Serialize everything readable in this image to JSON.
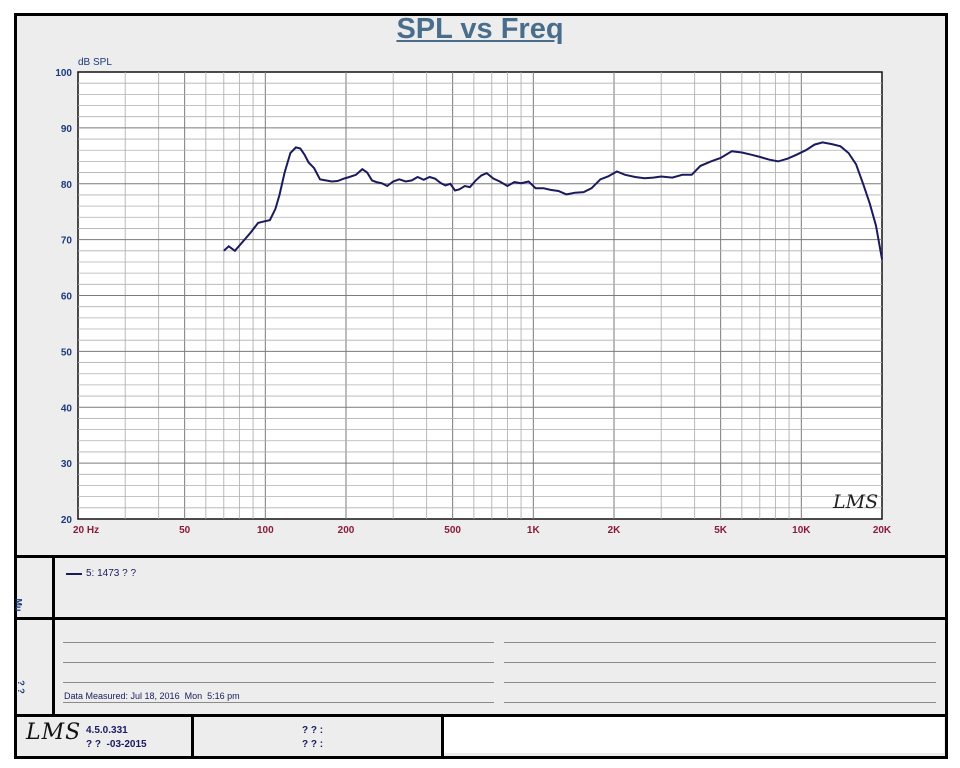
{
  "chart_data": {
    "type": "line",
    "title": "SPL vs Freq",
    "ylabel": "dB SPL",
    "xlabel": "",
    "x_scale": "log",
    "xlim": [
      20,
      20000
    ],
    "ylim": [
      20,
      100
    ],
    "y_ticks": [
      20,
      30,
      40,
      50,
      60,
      70,
      80,
      90,
      100
    ],
    "x_tick_values": [
      20,
      50,
      100,
      200,
      500,
      1000,
      2000,
      5000,
      10000,
      20000
    ],
    "x_tick_labels": [
      "20  Hz",
      "50",
      "100",
      "200",
      "500",
      "1K",
      "2K",
      "5K",
      "10K",
      "20K"
    ],
    "grid": true,
    "watermark": "LMS",
    "series": [
      {
        "name": "5: 1473 ? ?",
        "color": "#1a1a5e",
        "x": [
          70,
          73,
          77,
          82,
          88,
          94,
          98,
          104,
          109,
          113,
          118,
          124,
          130,
          135,
          140,
          145,
          152,
          160,
          168,
          177,
          186,
          196,
          206,
          218,
          230,
          240,
          250,
          260,
          272,
          285,
          300,
          316,
          334,
          352,
          370,
          390,
          410,
          430,
          452,
          470,
          490,
          510,
          530,
          555,
          580,
          610,
          640,
          670,
          710,
          750,
          800,
          850,
          900,
          960,
          1020,
          1090,
          1160,
          1240,
          1330,
          1430,
          1540,
          1650,
          1780,
          1900,
          2050,
          2200,
          2400,
          2600,
          2800,
          3000,
          3300,
          3600,
          3900,
          4200,
          4600,
          5000,
          5500,
          6000,
          6500,
          7000,
          7600,
          8200,
          8900,
          9600,
          10400,
          11200,
          12000,
          13000,
          14000,
          15000,
          16000,
          17000,
          18000,
          19000,
          20000
        ],
        "values": [
          68.0,
          68.8,
          68.0,
          69.5,
          71.2,
          73.0,
          73.2,
          73.5,
          75.5,
          78.0,
          82.0,
          85.5,
          86.5,
          86.3,
          85.2,
          83.8,
          82.8,
          80.8,
          80.6,
          80.4,
          80.5,
          80.9,
          81.2,
          81.6,
          82.6,
          82.0,
          80.6,
          80.3,
          80.1,
          79.6,
          80.4,
          80.8,
          80.4,
          80.6,
          81.2,
          80.7,
          81.2,
          80.9,
          80.1,
          79.7,
          80.0,
          78.8,
          79.0,
          79.6,
          79.4,
          80.6,
          81.5,
          81.9,
          80.9,
          80.4,
          79.6,
          80.3,
          80.1,
          80.4,
          79.2,
          79.2,
          78.9,
          78.7,
          78.1,
          78.4,
          78.5,
          79.2,
          80.8,
          81.3,
          82.2,
          81.6,
          81.2,
          81.0,
          81.1,
          81.3,
          81.1,
          81.6,
          81.6,
          83.2,
          84.0,
          84.6,
          85.8,
          85.6,
          85.2,
          84.8,
          84.3,
          84.0,
          84.5,
          85.2,
          86.0,
          87.0,
          87.4,
          87.1,
          86.7,
          85.5,
          83.5,
          80.0,
          76.5,
          72.5,
          66.5
        ]
      }
    ]
  },
  "legend": {
    "label": "5: 1473 ? ?"
  },
  "sidebar": {
    "legend_label": "Mu",
    "notes_label": "? ?"
  },
  "notes": {
    "measured": "Data Measured: Jul 18, 2016  Mon  5:16 pm"
  },
  "footer": {
    "logo": "LMS",
    "version": "4.5.0.331",
    "date": "? ?  -03-2015",
    "field1": "? ? :",
    "field2": "? ? :"
  }
}
